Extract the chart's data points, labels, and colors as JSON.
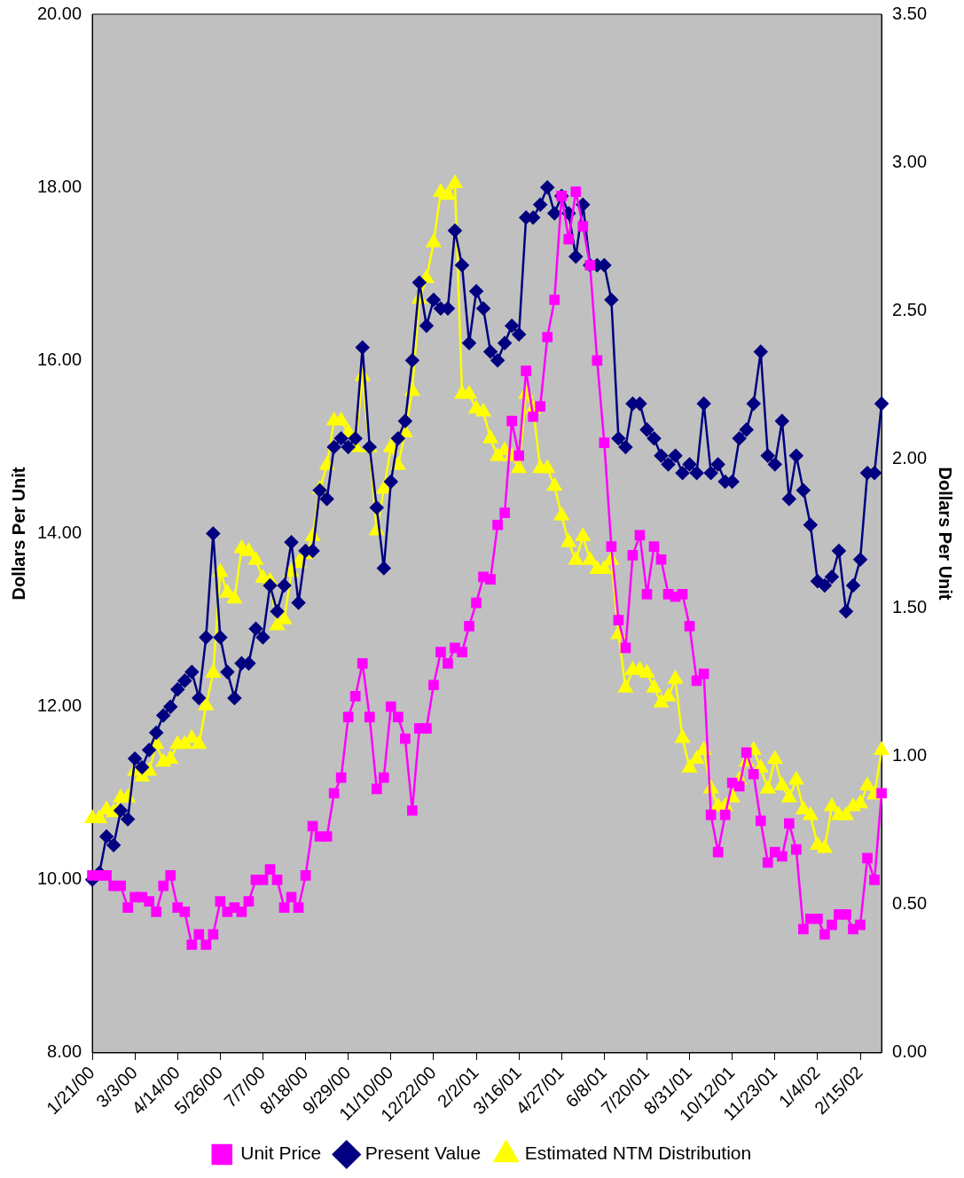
{
  "chart_data": {
    "type": "line",
    "categories": [
      "1/21/00",
      null,
      null,
      null,
      null,
      null,
      "3/3/00",
      null,
      null,
      null,
      null,
      null,
      "4/14/00",
      null,
      null,
      null,
      null,
      null,
      "5/26/00",
      null,
      null,
      null,
      null,
      null,
      "7/7/00",
      null,
      null,
      null,
      null,
      null,
      "8/18/00",
      null,
      null,
      null,
      null,
      null,
      "9/29/00",
      null,
      null,
      null,
      null,
      null,
      "11/10/00",
      null,
      null,
      null,
      null,
      null,
      "12/22/00",
      null,
      null,
      null,
      null,
      null,
      "2/2/01",
      null,
      null,
      null,
      null,
      null,
      "3/16/01",
      null,
      null,
      null,
      null,
      null,
      "4/27/01",
      null,
      null,
      null,
      null,
      null,
      "6/8/01",
      null,
      null,
      null,
      null,
      null,
      "7/20/01",
      null,
      null,
      null,
      null,
      null,
      "8/31/01",
      null,
      null,
      null,
      null,
      null,
      "10/12/01",
      null,
      null,
      null,
      null,
      null,
      "11/23/01",
      null,
      null,
      null,
      null,
      null,
      "1/4/02",
      null,
      null,
      null,
      null,
      null,
      "2/15/02",
      null,
      null,
      null
    ],
    "series": [
      {
        "name": "Unit Price",
        "color": "#ff00ff",
        "marker": "square",
        "values": [
          10.05,
          10.05,
          10.05,
          9.93,
          9.93,
          9.68,
          9.8,
          9.8,
          9.75,
          9.63,
          9.93,
          10.05,
          9.68,
          9.63,
          9.25,
          9.37,
          9.25,
          9.37,
          9.75,
          9.63,
          9.68,
          9.63,
          9.75,
          10,
          10,
          10.12,
          10,
          9.68,
          9.8,
          9.68,
          10.05,
          10.62,
          10.5,
          10.5,
          11,
          11.18,
          11.88,
          12.12,
          12.5,
          11.88,
          11.05,
          11.18,
          12,
          11.88,
          11.63,
          10.8,
          11.75,
          11.75,
          12.25,
          12.63,
          12.5,
          12.68,
          12.63,
          12.93,
          13.2,
          13.5,
          13.47,
          14.1,
          14.24,
          15.3,
          14.9,
          15.88,
          15.35,
          15.47,
          16.27,
          16.7,
          17.9,
          17.4,
          17.95,
          17.55,
          17.1,
          16,
          15.05,
          13.85,
          13,
          12.68,
          13.75,
          13.98,
          13.3,
          13.85,
          13.7,
          13.3,
          13.27,
          13.3,
          12.93,
          12.3,
          12.38,
          10.75,
          10.32,
          10.75,
          11.12,
          11.08,
          11.47,
          11.22,
          10.68,
          10.2,
          10.32,
          10.27,
          10.65,
          10.35,
          9.43,
          9.55,
          9.55,
          9.37,
          9.48,
          9.6,
          9.6,
          9.43,
          9.48,
          10.25,
          10,
          11
        ]
      },
      {
        "name": "Present Value",
        "color": "#000080",
        "marker": "diamond",
        "values": [
          10,
          10.08,
          10.5,
          10.4,
          10.8,
          10.7,
          11.4,
          11.3,
          11.5,
          11.7,
          11.9,
          12,
          12.2,
          12.3,
          12.4,
          12.1,
          12.8,
          14,
          12.8,
          12.4,
          12.1,
          12.5,
          12.5,
          12.9,
          12.8,
          13.4,
          13.1,
          13.4,
          13.9,
          13.2,
          13.8,
          13.8,
          14.5,
          14.4,
          15,
          15.1,
          15,
          15.1,
          16.15,
          15,
          14.3,
          13.6,
          14.6,
          15.1,
          15.3,
          16,
          16.9,
          16.4,
          16.7,
          16.6,
          16.6,
          17.5,
          17.1,
          16.2,
          16.8,
          16.6,
          16.1,
          16,
          16.2,
          16.4,
          16.3,
          17.65,
          17.65,
          17.8,
          18,
          17.7,
          17.9,
          17.7,
          17.2,
          17.8,
          17.1,
          17.1,
          17.1,
          16.7,
          15.1,
          15,
          15.5,
          15.5,
          15.2,
          15.1,
          14.9,
          14.8,
          14.9,
          14.7,
          14.8,
          14.7,
          15.5,
          14.7,
          14.8,
          14.6,
          14.6,
          15.1,
          15.2,
          15.5,
          16.1,
          14.9,
          14.8,
          15.3,
          14.4,
          14.9,
          14.5,
          14.1,
          13.45,
          13.4,
          13.5,
          13.8,
          13.1,
          13.4,
          13.7,
          14.7,
          14.7,
          15.5
        ]
      },
      {
        "name": "Estimated NTM Distribution",
        "color": "#ffff00",
        "marker": "triangle",
        "axis": "y2",
        "values": [
          0.79,
          0.79,
          0.82,
          0.81,
          0.86,
          0.86,
          0.95,
          0.93,
          0.95,
          1.04,
          0.98,
          0.99,
          1.04,
          1.04,
          1.06,
          1.04,
          1.17,
          1.28,
          1.62,
          1.55,
          1.53,
          1.7,
          1.69,
          1.66,
          1.6,
          1.59,
          1.44,
          1.46,
          1.62,
          1.65,
          1.68,
          1.74,
          1.9,
          1.98,
          2.13,
          2.13,
          2.09,
          2.04,
          2.28,
          2.04,
          1.76,
          1.9,
          2.04,
          1.98,
          2.09,
          2.23,
          2.54,
          2.61,
          2.73,
          2.9,
          2.89,
          2.93,
          2.22,
          2.22,
          2.17,
          2.16,
          2.07,
          2.01,
          2.03,
          2.01,
          1.97,
          2.22,
          2.17,
          1.97,
          1.97,
          1.91,
          1.81,
          1.72,
          1.66,
          1.74,
          1.66,
          1.63,
          1.63,
          1.66,
          1.41,
          1.23,
          1.29,
          1.29,
          1.28,
          1.23,
          1.18,
          1.2,
          1.26,
          1.06,
          0.96,
          0.99,
          1.02,
          0.89,
          0.83,
          0.83,
          0.86,
          0.92,
          0.98,
          1.02,
          0.96,
          0.89,
          0.99,
          0.9,
          0.86,
          0.92,
          0.82,
          0.8,
          0.7,
          0.69,
          0.83,
          0.8,
          0.8,
          0.83,
          0.84,
          0.9,
          0.87,
          1.02
        ]
      }
    ],
    "ylabel": "Dollars Per Unit",
    "y2label": "Dollars Per Unit",
    "ylim": [
      8,
      20
    ],
    "yticks": [
      {
        "value": 8,
        "label": "8.00"
      },
      {
        "value": 10,
        "label": "10.00"
      },
      {
        "value": 12,
        "label": "12.00"
      },
      {
        "value": 14,
        "label": "14.00"
      },
      {
        "value": 16,
        "label": "16.00"
      },
      {
        "value": 18,
        "label": "18.00"
      },
      {
        "value": 20,
        "label": "20.00"
      }
    ],
    "y2lim": [
      0,
      3.5
    ],
    "y2ticks": [
      {
        "value": 0,
        "label": "0.00"
      },
      {
        "value": 0.5,
        "label": "0.50"
      },
      {
        "value": 1,
        "label": "1.00"
      },
      {
        "value": 1.5,
        "label": "1.50"
      },
      {
        "value": 2,
        "label": "2.00"
      },
      {
        "value": 2.5,
        "label": "2.50"
      },
      {
        "value": 3,
        "label": "3.00"
      },
      {
        "value": 3.5,
        "label": "3.50"
      }
    ],
    "grid": false,
    "legend": "bottom",
    "line_style": "solid"
  }
}
